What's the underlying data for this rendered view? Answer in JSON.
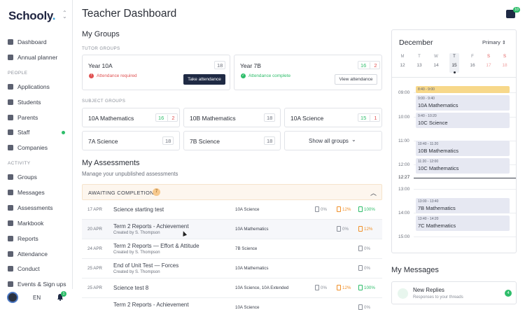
{
  "app": {
    "logo": "Schooly",
    "lang": "EN",
    "notif_count": "1",
    "chat_count": "10"
  },
  "sidebar": {
    "items_top": [
      {
        "label": "Dashboard",
        "icon": "dashboard-icon"
      },
      {
        "label": "Annual planner",
        "icon": "calendar-icon"
      }
    ],
    "people_label": "PEOPLE",
    "items_people": [
      {
        "label": "Applications",
        "icon": "applications-icon"
      },
      {
        "label": "Students",
        "icon": "students-icon"
      },
      {
        "label": "Parents",
        "icon": "parents-icon"
      },
      {
        "label": "Staff",
        "icon": "staff-icon"
      },
      {
        "label": "Companies",
        "icon": "companies-icon"
      }
    ],
    "activity_label": "ACTIVITY",
    "items_activity": [
      {
        "label": "Groups",
        "icon": "groups-icon"
      },
      {
        "label": "Messages",
        "icon": "messages-icon"
      },
      {
        "label": "Assessments",
        "icon": "assessments-icon"
      },
      {
        "label": "Markbook",
        "icon": "markbook-icon"
      },
      {
        "label": "Reports",
        "icon": "reports-icon"
      },
      {
        "label": "Attendance",
        "icon": "attendance-icon"
      },
      {
        "label": "Conduct",
        "icon": "conduct-icon"
      },
      {
        "label": "Events & Sign ups",
        "icon": "events-icon"
      }
    ]
  },
  "page": {
    "title": "Teacher Dashboard"
  },
  "groups": {
    "title": "My Groups",
    "tutor_label": "TUTOR GROUPS",
    "subject_label": "SUBJECT GROUPS",
    "tutor": [
      {
        "name": "Year 10A",
        "count": "18",
        "status": "Attendance required",
        "action": "Take attendance"
      },
      {
        "name": "Year 7B",
        "count_a": "16",
        "count_b": "2",
        "status": "Attendance complete",
        "action": "View attendance"
      }
    ],
    "subject": [
      {
        "name": "10A Mathematics",
        "a": "16",
        "b": "2"
      },
      {
        "name": "10B Mathematics",
        "count": "18"
      },
      {
        "name": "10A Science",
        "a": "15",
        "b": "1"
      },
      {
        "name": "7A Science",
        "count": "18"
      },
      {
        "name": "7B Science",
        "count": "18"
      }
    ],
    "show_all": "Show all groups"
  },
  "assessments": {
    "title": "My Assessments",
    "subtitle": "Manage your unpublished assessments",
    "section": "AWAITING COMPLETION",
    "section_count": "7",
    "rows": [
      {
        "date": "17 APR",
        "title": "Science starting test",
        "by": "",
        "group": "10A Science",
        "p1": "0%",
        "p2": "12%",
        "p3": "100%"
      },
      {
        "date": "20 APR",
        "title": "Term 2 Reports - Achievement",
        "by": "Created by S. Thompson",
        "group": "10A Mathematics",
        "p1": "0%",
        "p2": "12%"
      },
      {
        "date": "24 APR",
        "title": "Term 2 Reports — Effort & Attitude",
        "by": "Created by S. Thompson",
        "group": "7B Science",
        "p1": "0%"
      },
      {
        "date": "25 APR",
        "title": "End of Unit Test — Forces",
        "by": "Created by S. Thompson",
        "group": "10A Mathematics",
        "p1": "0%"
      },
      {
        "date": "25 APR",
        "title": "Science test 8",
        "by": "",
        "group": "10A Science, 10A Extended",
        "p1": "0%",
        "p2": "12%",
        "p3": "100%"
      },
      {
        "date": "",
        "title": "Term 2 Reports - Achievement",
        "by": "",
        "group": "10A Science",
        "p1": "0%"
      }
    ]
  },
  "calendar": {
    "month": "December",
    "school": "Primary",
    "weekdays": [
      "M",
      "T",
      "W",
      "T",
      "F",
      "S",
      "S"
    ],
    "days": [
      "12",
      "13",
      "14",
      "15",
      "16",
      "17",
      "18"
    ],
    "hours": [
      "09:00",
      "10:00",
      "11:00",
      "12:00",
      "13:00",
      "14:00",
      "15:00"
    ],
    "now": "12:27",
    "events": [
      {
        "time": "8:40 - 9:00",
        "name": ""
      },
      {
        "time": "9:00 - 9:40",
        "name": "10A Mathematics"
      },
      {
        "time": "9:40 - 10:20",
        "name": "10C Science"
      },
      {
        "time": "10:40 - 11:20",
        "name": "10B Mathematics"
      },
      {
        "time": "11:20 - 12:00",
        "name": "10C Mathematics"
      },
      {
        "time": "13:00 - 13:40",
        "name": "7B Mathematics"
      },
      {
        "time": "13:40 - 14:20",
        "name": "7C Mathematics"
      }
    ]
  },
  "messages": {
    "title": "My Messages",
    "item_title": "New Replies",
    "item_sub": "Responses to your threads",
    "item_count": "4"
  },
  "colors": {
    "accent": "#1f2a44",
    "success": "#2ebd6a",
    "danger": "#e05252",
    "warning": "#f0902a",
    "event": "#e6e8f2",
    "event_highlight": "#f7d88a"
  }
}
